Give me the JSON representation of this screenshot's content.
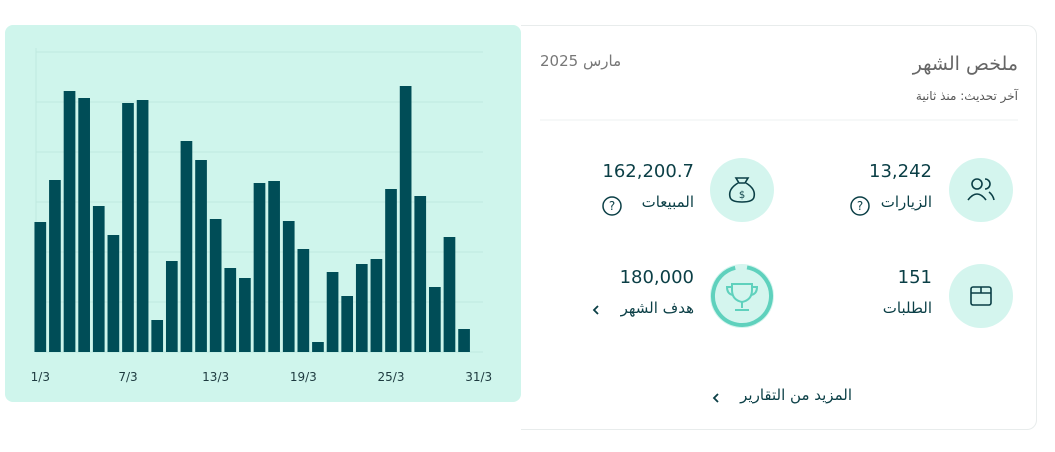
{
  "header": {
    "title": "ملخص الشهر",
    "updated": "آخر تحديث: منذ ثانية",
    "period": "مارس 2025"
  },
  "stats": [
    {
      "label": "الزيارات",
      "value": "13,242"
    },
    {
      "label": "المبيعات",
      "value": "162,200.7"
    },
    {
      "label": "الطلبات",
      "value": "151"
    },
    {
      "label": "هدف الشهر",
      "value": "180,000"
    }
  ],
  "more_link": "المزيد من التقارير",
  "chart_data": {
    "type": "bar",
    "categories": [
      "1/3",
      null,
      null,
      null,
      null,
      null,
      "7/3",
      null,
      null,
      null,
      null,
      null,
      "13/3",
      null,
      null,
      null,
      null,
      null,
      "19/3",
      null,
      null,
      null,
      null,
      null,
      "25/3",
      null,
      null,
      null,
      null,
      null,
      "31/3"
    ],
    "values": [
      130,
      172,
      261,
      254,
      146,
      117,
      249,
      252,
      32,
      91,
      211,
      192,
      133,
      84,
      74,
      169,
      171,
      131,
      103,
      10,
      80,
      56,
      88,
      93,
      163,
      266,
      156,
      65,
      115,
      23,
      null
    ],
    "color": "#004d57",
    "ylim": [
      0,
      300
    ],
    "yticks": [
      0,
      50,
      100,
      150,
      200,
      250,
      300
    ],
    "grid": true
  }
}
